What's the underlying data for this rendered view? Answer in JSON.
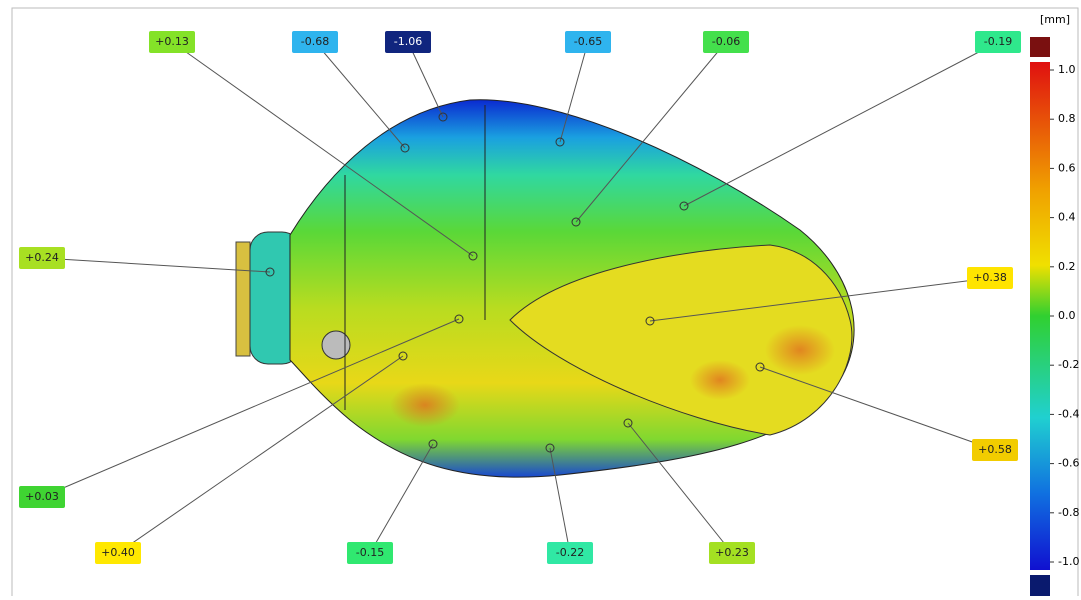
{
  "legend": {
    "unit": "[mm]",
    "ticks": [
      "1.0",
      "0.8",
      "0.6",
      "0.4",
      "0.2",
      "0.0",
      "-0.2",
      "-0.4",
      "-0.6",
      "-0.8",
      "-1.0"
    ],
    "over_color": "#7a1010",
    "under_color": "#0a1a6e"
  },
  "callouts": [
    {
      "label": "+0.13",
      "color": "#84e228"
    },
    {
      "label": "-0.68",
      "color": "#2fb4ee"
    },
    {
      "label": "-1.06",
      "color": "#10257e"
    },
    {
      "label": "-0.65",
      "color": "#2fb4ee"
    },
    {
      "label": "-0.06",
      "color": "#44e04c"
    },
    {
      "label": "-0.19",
      "color": "#2fe88c"
    },
    {
      "label": "+0.24",
      "color": "#a8e022"
    },
    {
      "label": "+0.38",
      "color": "#ffe400"
    },
    {
      "label": "+0.58",
      "color": "#f2cc00"
    },
    {
      "label": "+0.03",
      "color": "#3fd432"
    },
    {
      "label": "+0.40",
      "color": "#ffe800"
    },
    {
      "label": "-0.15",
      "color": "#30e870"
    },
    {
      "label": "-0.22",
      "color": "#30e8a4"
    },
    {
      "label": "+0.23",
      "color": "#a4e022"
    }
  ]
}
